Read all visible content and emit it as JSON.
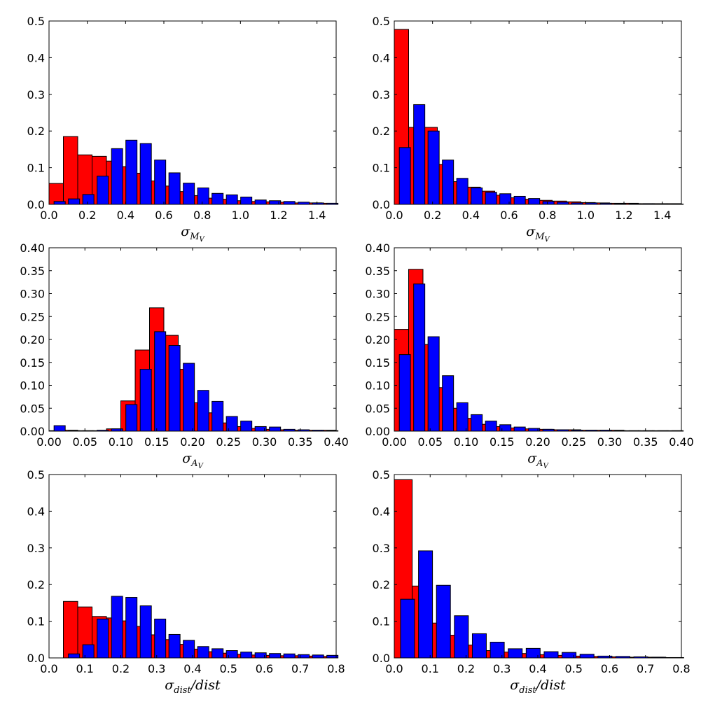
{
  "colors": {
    "red": "#ff0000",
    "blue": "#0000ff",
    "edge": "#000000"
  },
  "chart_data": [
    {
      "type": "bar",
      "panel": "top-left",
      "title": "",
      "xlabel": "σ_{M_V}",
      "ylabel": "",
      "xlim": [
        0,
        1.5
      ],
      "ylim": [
        0,
        0.5
      ],
      "xticks": [
        "0.0",
        "0.2",
        "0.4",
        "0.6",
        "0.8",
        "1.0",
        "1.2",
        "1.4"
      ],
      "yticks": [
        "0.0",
        "0.1",
        "0.2",
        "0.3",
        "0.4",
        "0.5"
      ],
      "bin_width": 0.075,
      "series": [
        {
          "name": "red",
          "color": "#ff0000",
          "x": [
            0.0,
            0.075,
            0.15,
            0.225,
            0.3,
            0.375,
            0.45,
            0.525,
            0.6,
            0.675,
            0.75,
            0.825,
            0.9,
            0.975,
            1.05,
            1.125,
            1.2,
            1.275,
            1.35,
            1.425
          ],
          "values": [
            0.057,
            0.185,
            0.135,
            0.131,
            0.118,
            0.103,
            0.085,
            0.064,
            0.05,
            0.035,
            0.024,
            0.017,
            0.014,
            0.01,
            0.008,
            0.007,
            0.006,
            0.004,
            0.004,
            0.003
          ]
        },
        {
          "name": "blue",
          "color": "#0000ff",
          "x": [
            0.0,
            0.075,
            0.15,
            0.225,
            0.3,
            0.375,
            0.45,
            0.525,
            0.6,
            0.675,
            0.75,
            0.825,
            0.9,
            0.975,
            1.05,
            1.125,
            1.2,
            1.275,
            1.35,
            1.425
          ],
          "values": [
            0.008,
            0.015,
            0.027,
            0.077,
            0.152,
            0.175,
            0.166,
            0.121,
            0.086,
            0.058,
            0.045,
            0.03,
            0.026,
            0.02,
            0.012,
            0.01,
            0.008,
            0.006,
            0.004,
            0.003
          ]
        }
      ]
    },
    {
      "type": "bar",
      "panel": "top-right",
      "title": "",
      "xlabel": "σ_{M_V}",
      "ylabel": "",
      "xlim": [
        0,
        1.5
      ],
      "ylim": [
        0,
        0.5
      ],
      "xticks": [
        "0.0",
        "0.2",
        "0.4",
        "0.6",
        "0.8",
        "1.0",
        "1.2",
        "1.4"
      ],
      "yticks": [
        "0.0",
        "0.1",
        "0.2",
        "0.3",
        "0.4",
        "0.5"
      ],
      "bin_width": 0.075,
      "series": [
        {
          "name": "red",
          "color": "#ff0000",
          "x": [
            0.0,
            0.075,
            0.15,
            0.225,
            0.3,
            0.375,
            0.45,
            0.525,
            0.6,
            0.675,
            0.75,
            0.825,
            0.9,
            0.975,
            1.05,
            1.125,
            1.2,
            1.275,
            1.35,
            1.425
          ],
          "values": [
            0.477,
            0.21,
            0.21,
            0.109,
            0.062,
            0.047,
            0.036,
            0.025,
            0.018,
            0.014,
            0.011,
            0.009,
            0.007,
            0.005,
            0.004,
            0.003,
            0.003,
            0.002,
            0.002,
            0.002
          ]
        },
        {
          "name": "blue",
          "color": "#0000ff",
          "x": [
            0.0,
            0.075,
            0.15,
            0.225,
            0.3,
            0.375,
            0.45,
            0.525,
            0.6,
            0.675,
            0.75,
            0.825,
            0.9,
            0.975,
            1.05,
            1.125,
            1.2,
            1.275,
            1.35,
            1.425
          ],
          "values": [
            0.155,
            0.272,
            0.2,
            0.121,
            0.071,
            0.045,
            0.033,
            0.029,
            0.022,
            0.016,
            0.008,
            0.006,
            0.004,
            0.004,
            0.003,
            0.002,
            0.002,
            0.002,
            0.001,
            0.001
          ]
        }
      ]
    },
    {
      "type": "bar",
      "panel": "middle-left",
      "title": "",
      "xlabel": "σ_{A_V}",
      "ylabel": "",
      "xlim": [
        0,
        0.4
      ],
      "ylim": [
        0,
        0.4
      ],
      "xticks": [
        "0.00",
        "0.05",
        "0.10",
        "0.15",
        "0.20",
        "0.25",
        "0.30",
        "0.35",
        "0.40"
      ],
      "yticks": [
        "0.00",
        "0.05",
        "0.10",
        "0.15",
        "0.20",
        "0.25",
        "0.30",
        "0.35",
        "0.40"
      ],
      "bin_width": 0.02,
      "series": [
        {
          "name": "red",
          "color": "#ff0000",
          "x": [
            0.0,
            0.02,
            0.04,
            0.06,
            0.08,
            0.1,
            0.12,
            0.14,
            0.16,
            0.18,
            0.2,
            0.22,
            0.24,
            0.26,
            0.28,
            0.3,
            0.32,
            0.34,
            0.36,
            0.38
          ],
          "values": [
            0.001,
            0.002,
            0.001,
            0.001,
            0.005,
            0.066,
            0.177,
            0.269,
            0.209,
            0.135,
            0.062,
            0.04,
            0.018,
            0.01,
            0.006,
            0.004,
            0.003,
            0.002,
            0.002,
            0.002
          ]
        },
        {
          "name": "blue",
          "color": "#0000ff",
          "x": [
            0.0,
            0.02,
            0.04,
            0.06,
            0.08,
            0.1,
            0.12,
            0.14,
            0.16,
            0.18,
            0.2,
            0.22,
            0.24,
            0.26,
            0.28,
            0.3,
            0.32,
            0.34,
            0.36,
            0.38
          ],
          "values": [
            0.012,
            0.001,
            0.001,
            0.002,
            0.005,
            0.058,
            0.135,
            0.217,
            0.187,
            0.148,
            0.089,
            0.065,
            0.032,
            0.022,
            0.01,
            0.009,
            0.004,
            0.003,
            0.002,
            0.001
          ]
        }
      ]
    },
    {
      "type": "bar",
      "panel": "middle-right",
      "title": "",
      "xlabel": "σ_{A_V}",
      "ylabel": "",
      "xlim": [
        0,
        0.4
      ],
      "ylim": [
        0,
        0.4
      ],
      "xticks": [
        "0.00",
        "0.05",
        "0.10",
        "0.15",
        "0.20",
        "0.25",
        "0.30",
        "0.35",
        "0.40"
      ],
      "yticks": [
        "0.00",
        "0.05",
        "0.10",
        "0.15",
        "0.20",
        "0.25",
        "0.30",
        "0.35",
        "0.40"
      ],
      "bin_width": 0.02,
      "series": [
        {
          "name": "red",
          "color": "#ff0000",
          "x": [
            0.0,
            0.02,
            0.04,
            0.06,
            0.08,
            0.1,
            0.12,
            0.14,
            0.16,
            0.18,
            0.2,
            0.22,
            0.24,
            0.26,
            0.28,
            0.3,
            0.32,
            0.34,
            0.36,
            0.38
          ],
          "values": [
            0.222,
            0.353,
            0.189,
            0.095,
            0.05,
            0.028,
            0.015,
            0.01,
            0.007,
            0.005,
            0.004,
            0.003,
            0.003,
            0.002,
            0.002,
            0.002,
            0.001,
            0.001,
            0.001,
            0.001
          ]
        },
        {
          "name": "blue",
          "color": "#0000ff",
          "x": [
            0.0,
            0.02,
            0.04,
            0.06,
            0.08,
            0.1,
            0.12,
            0.14,
            0.16,
            0.18,
            0.2,
            0.22,
            0.24,
            0.26,
            0.28,
            0.3,
            0.32,
            0.34,
            0.36,
            0.38
          ],
          "values": [
            0.167,
            0.321,
            0.206,
            0.121,
            0.062,
            0.036,
            0.022,
            0.014,
            0.009,
            0.006,
            0.004,
            0.003,
            0.002,
            0.002,
            0.002,
            0.001,
            0.001,
            0.001,
            0.001,
            0.001
          ]
        }
      ]
    },
    {
      "type": "bar",
      "panel": "bottom-left",
      "title": "",
      "xlabel": "σ_{dist}/dist",
      "ylabel": "",
      "xlim": [
        0,
        0.8
      ],
      "ylim": [
        0,
        0.5
      ],
      "xticks": [
        "0.0",
        "0.1",
        "0.2",
        "0.3",
        "0.4",
        "0.5",
        "0.6",
        "0.7",
        "0.8"
      ],
      "yticks": [
        "0.0",
        "0.1",
        "0.2",
        "0.3",
        "0.4",
        "0.5"
      ],
      "bin_width": 0.04,
      "series": [
        {
          "name": "red",
          "color": "#ff0000",
          "x": [
            0.04,
            0.08,
            0.12,
            0.16,
            0.2,
            0.24,
            0.28,
            0.32,
            0.36,
            0.4,
            0.44,
            0.48,
            0.52,
            0.56,
            0.6,
            0.64,
            0.68,
            0.72,
            0.76
          ],
          "values": [
            0.154,
            0.139,
            0.113,
            0.109,
            0.101,
            0.086,
            0.063,
            0.05,
            0.037,
            0.024,
            0.017,
            0.013,
            0.01,
            0.008,
            0.007,
            0.006,
            0.006,
            0.005,
            0.004
          ]
        },
        {
          "name": "blue",
          "color": "#0000ff",
          "x": [
            0.04,
            0.08,
            0.12,
            0.16,
            0.2,
            0.24,
            0.28,
            0.32,
            0.36,
            0.4,
            0.44,
            0.48,
            0.52,
            0.56,
            0.6,
            0.64,
            0.68,
            0.72,
            0.76
          ],
          "values": [
            0.011,
            0.036,
            0.106,
            0.168,
            0.165,
            0.142,
            0.106,
            0.064,
            0.048,
            0.031,
            0.025,
            0.02,
            0.016,
            0.014,
            0.012,
            0.011,
            0.009,
            0.008,
            0.007
          ]
        }
      ]
    },
    {
      "type": "bar",
      "panel": "bottom-right",
      "title": "",
      "xlabel": "σ_{dist}/dist",
      "ylabel": "",
      "xlim": [
        0,
        0.8
      ],
      "ylim": [
        0,
        0.5
      ],
      "xticks": [
        "0.0",
        "0.1",
        "0.2",
        "0.3",
        "0.4",
        "0.5",
        "0.6",
        "0.7",
        "0.8"
      ],
      "yticks": [
        "0.0",
        "0.1",
        "0.2",
        "0.3",
        "0.4",
        "0.5"
      ],
      "bin_width": 0.05,
      "series": [
        {
          "name": "red",
          "color": "#ff0000",
          "x": [
            0.0,
            0.05,
            0.1,
            0.15,
            0.2,
            0.25,
            0.3,
            0.35,
            0.4,
            0.45,
            0.5,
            0.55,
            0.6,
            0.65,
            0.7,
            0.75
          ],
          "values": [
            0.486,
            0.196,
            0.095,
            0.062,
            0.035,
            0.02,
            0.016,
            0.012,
            0.009,
            0.007,
            0.005,
            0.004,
            0.003,
            0.002,
            0.002,
            0.001
          ]
        },
        {
          "name": "blue",
          "color": "#0000ff",
          "x": [
            0.0,
            0.05,
            0.1,
            0.15,
            0.2,
            0.25,
            0.3,
            0.35,
            0.4,
            0.45,
            0.5,
            0.55,
            0.6,
            0.65,
            0.7,
            0.75
          ],
          "values": [
            0.16,
            0.292,
            0.198,
            0.115,
            0.066,
            0.043,
            0.025,
            0.026,
            0.017,
            0.015,
            0.01,
            0.005,
            0.004,
            0.003,
            0.002,
            0.001
          ]
        }
      ]
    }
  ]
}
